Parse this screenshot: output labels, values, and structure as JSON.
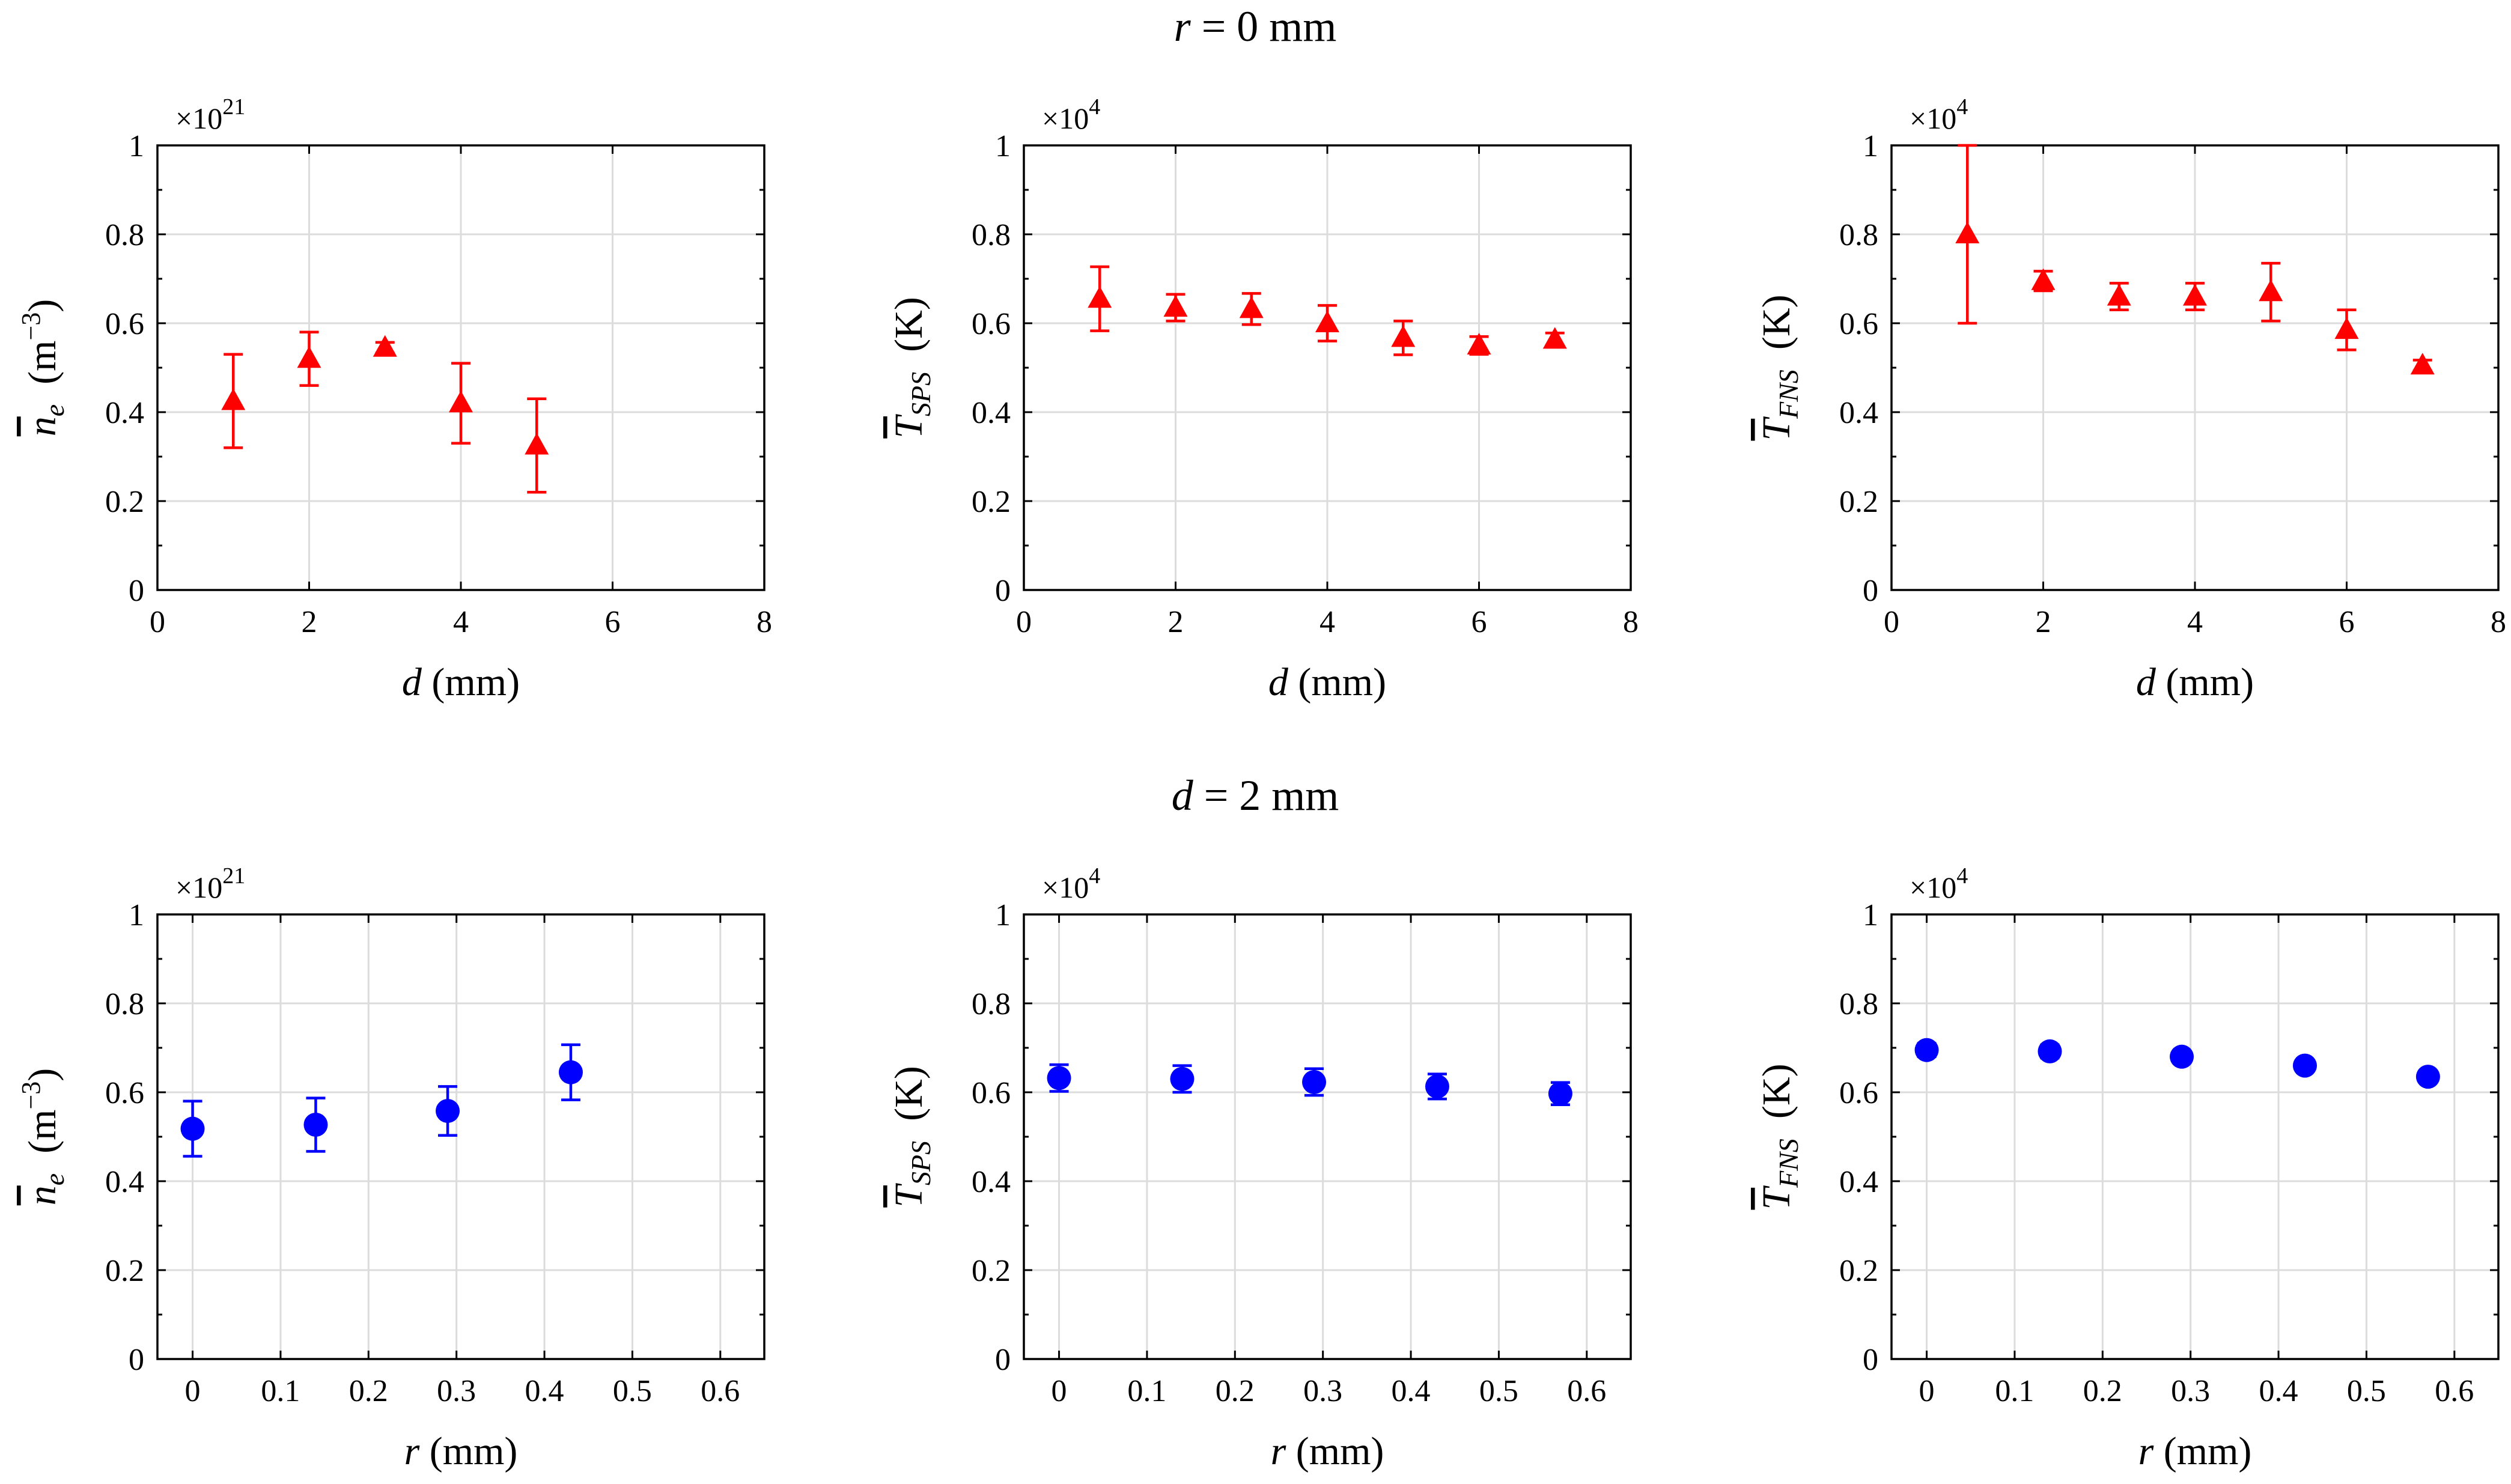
{
  "rows": [
    {
      "title": "r = 0 mm",
      "title_var": "r",
      "title_rest": " = 0 mm"
    },
    {
      "title": "d = 2 mm",
      "title_var": "d",
      "title_rest": " = 2 mm"
    }
  ],
  "colors": {
    "row1": "#ff0000",
    "row2": "#0000ff",
    "grid": "#dcdcdc"
  },
  "chart_data": [
    {
      "type": "scatter",
      "marker": "triangle",
      "color": "#ff0000",
      "multiplier": "×10",
      "multiplier_exp": "21",
      "ylabel": "n̄e (m−3)",
      "xlabel": "d (mm)",
      "xlim": [
        0,
        8
      ],
      "xticks": [
        0,
        2,
        4,
        6,
        8
      ],
      "xtick_labels": [
        "0",
        "2",
        "4",
        "6",
        "8"
      ],
      "ylim": [
        0,
        1
      ],
      "yticks": [
        0,
        0.2,
        0.4,
        0.6,
        0.8,
        1
      ],
      "ytick_labels": [
        "0",
        "0.2",
        "0.4",
        "0.6",
        "0.8",
        "1"
      ],
      "grid": true,
      "points": [
        {
          "x": 1,
          "y": 0.425,
          "err": 0.105
        },
        {
          "x": 2,
          "y": 0.52,
          "err": 0.06
        },
        {
          "x": 3,
          "y": 0.545,
          "err": 0.012
        },
        {
          "x": 4,
          "y": 0.42,
          "err": 0.09
        },
        {
          "x": 5,
          "y": 0.325,
          "err": 0.105
        }
      ]
    },
    {
      "type": "scatter",
      "marker": "triangle",
      "color": "#ff0000",
      "multiplier": "×10",
      "multiplier_exp": "4",
      "ylabel": "T̄SPS (K)",
      "xlabel": "d (mm)",
      "xlim": [
        0,
        8
      ],
      "xticks": [
        0,
        2,
        4,
        6,
        8
      ],
      "xtick_labels": [
        "0",
        "2",
        "4",
        "6",
        "8"
      ],
      "ylim": [
        0,
        1
      ],
      "yticks": [
        0,
        0.2,
        0.4,
        0.6,
        0.8,
        1
      ],
      "ytick_labels": [
        "0",
        "0.2",
        "0.4",
        "0.6",
        "0.8",
        "1"
      ],
      "grid": true,
      "points": [
        {
          "x": 1,
          "y": 0.655,
          "err": 0.072
        },
        {
          "x": 2,
          "y": 0.635,
          "err": 0.03
        },
        {
          "x": 3,
          "y": 0.632,
          "err": 0.035
        },
        {
          "x": 4,
          "y": 0.6,
          "err": 0.04
        },
        {
          "x": 5,
          "y": 0.567,
          "err": 0.038
        },
        {
          "x": 6,
          "y": 0.55,
          "err": 0.02
        },
        {
          "x": 7,
          "y": 0.563,
          "err": 0.015
        }
      ]
    },
    {
      "type": "scatter",
      "marker": "triangle",
      "color": "#ff0000",
      "multiplier": "×10",
      "multiplier_exp": "4",
      "ylabel": "T̄FNS (K)",
      "xlabel": "d (mm)",
      "xlim": [
        0,
        8
      ],
      "xticks": [
        0,
        2,
        4,
        6,
        8
      ],
      "xtick_labels": [
        "0",
        "2",
        "4",
        "6",
        "8"
      ],
      "ylim": [
        0,
        1
      ],
      "yticks": [
        0,
        0.2,
        0.4,
        0.6,
        0.8,
        1
      ],
      "ytick_labels": [
        "0",
        "0.2",
        "0.4",
        "0.6",
        "0.8",
        "1"
      ],
      "grid": true,
      "points": [
        {
          "x": 1,
          "y": 0.8,
          "err": 0.2
        },
        {
          "x": 2,
          "y": 0.695,
          "err": 0.022
        },
        {
          "x": 3,
          "y": 0.66,
          "err": 0.03
        },
        {
          "x": 4,
          "y": 0.66,
          "err": 0.03
        },
        {
          "x": 5,
          "y": 0.67,
          "err": 0.065
        },
        {
          "x": 6,
          "y": 0.585,
          "err": 0.045
        },
        {
          "x": 7,
          "y": 0.505,
          "err": 0.012
        }
      ]
    },
    {
      "type": "scatter",
      "marker": "circle",
      "color": "#0000ff",
      "multiplier": "×10",
      "multiplier_exp": "21",
      "ylabel": "n̄e (m−3)",
      "xlabel": "r (mm)",
      "xlim": [
        -0.04,
        0.65
      ],
      "xticks": [
        0,
        0.1,
        0.2,
        0.3,
        0.4,
        0.5,
        0.6
      ],
      "xtick_labels": [
        "0",
        "0.1",
        "0.2",
        "0.3",
        "0.4",
        "0.5",
        "0.6"
      ],
      "ylim": [
        0,
        1
      ],
      "yticks": [
        0,
        0.2,
        0.4,
        0.6,
        0.8,
        1
      ],
      "ytick_labels": [
        "0",
        "0.2",
        "0.4",
        "0.6",
        "0.8",
        "1"
      ],
      "grid": true,
      "points": [
        {
          "x": 0,
          "y": 0.518,
          "err": 0.062
        },
        {
          "x": 0.14,
          "y": 0.527,
          "err": 0.06
        },
        {
          "x": 0.29,
          "y": 0.558,
          "err": 0.055
        },
        {
          "x": 0.43,
          "y": 0.645,
          "err": 0.062
        }
      ]
    },
    {
      "type": "scatter",
      "marker": "circle",
      "color": "#0000ff",
      "multiplier": "×10",
      "multiplier_exp": "4",
      "ylabel": "T̄SPS (K)",
      "xlabel": "r (mm)",
      "xlim": [
        -0.04,
        0.65
      ],
      "xticks": [
        0,
        0.1,
        0.2,
        0.3,
        0.4,
        0.5,
        0.6
      ],
      "xtick_labels": [
        "0",
        "0.1",
        "0.2",
        "0.3",
        "0.4",
        "0.5",
        "0.6"
      ],
      "ylim": [
        0,
        1
      ],
      "yticks": [
        0,
        0.2,
        0.4,
        0.6,
        0.8,
        1
      ],
      "ytick_labels": [
        "0",
        "0.2",
        "0.4",
        "0.6",
        "0.8",
        "1"
      ],
      "grid": true,
      "points": [
        {
          "x": 0,
          "y": 0.632,
          "err": 0.03
        },
        {
          "x": 0.14,
          "y": 0.63,
          "err": 0.03
        },
        {
          "x": 0.29,
          "y": 0.623,
          "err": 0.03
        },
        {
          "x": 0.43,
          "y": 0.613,
          "err": 0.028
        },
        {
          "x": 0.57,
          "y": 0.597,
          "err": 0.025
        }
      ]
    },
    {
      "type": "scatter",
      "marker": "circle",
      "color": "#0000ff",
      "multiplier": "×10",
      "multiplier_exp": "4",
      "ylabel": "T̄FNS (K)",
      "xlabel": "r (mm)",
      "xlim": [
        -0.04,
        0.65
      ],
      "xticks": [
        0,
        0.1,
        0.2,
        0.3,
        0.4,
        0.5,
        0.6
      ],
      "xtick_labels": [
        "0",
        "0.1",
        "0.2",
        "0.3",
        "0.4",
        "0.5",
        "0.6"
      ],
      "ylim": [
        0,
        1
      ],
      "yticks": [
        0,
        0.2,
        0.4,
        0.6,
        0.8,
        1
      ],
      "ytick_labels": [
        "0",
        "0.2",
        "0.4",
        "0.6",
        "0.8",
        "1"
      ],
      "grid": true,
      "points": [
        {
          "x": 0,
          "y": 0.695,
          "err": 0.015
        },
        {
          "x": 0.14,
          "y": 0.692,
          "err": 0.015
        },
        {
          "x": 0.29,
          "y": 0.68,
          "err": 0.012
        },
        {
          "x": 0.43,
          "y": 0.66,
          "err": 0.012
        },
        {
          "x": 0.57,
          "y": 0.635,
          "err": 0.012
        }
      ]
    }
  ]
}
